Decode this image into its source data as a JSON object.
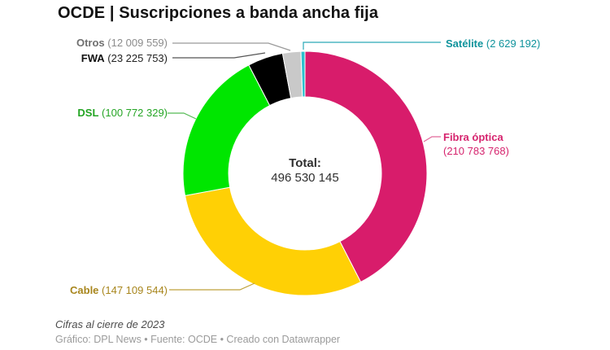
{
  "title": "OCDE | Suscripciones a banda ancha fija",
  "center": {
    "label": "Total:",
    "value": "496 530 145"
  },
  "footer": {
    "note": "Cifras al cierre de 2023",
    "credits": "Gráfico: DPL News • Fuente: OCDE • Creado con Datawrapper"
  },
  "chart_data": {
    "type": "pie",
    "donut": true,
    "title": "OCDE | Suscripciones a banda ancha fija",
    "total": 496530145,
    "total_display": "496 530 145",
    "start_angle_deg": 0,
    "direction": "clockwise",
    "segments": [
      {
        "name": "Fibra óptica",
        "value": 210783768,
        "value_display": "(210 783 768)",
        "color": "#d81c6b",
        "label_color": "#d6246e",
        "value_color": "#d6246e",
        "leader_color": "#e2699b"
      },
      {
        "name": "Cable",
        "value": 147109544,
        "value_display": "(147 109 544)",
        "color": "#ffd005",
        "label_color": "#a8861d",
        "value_color": "#a8861d",
        "leader_color": "#bfa13a"
      },
      {
        "name": "DSL",
        "value": 100772329,
        "value_display": "(100 772 329)",
        "color": "#00e600",
        "label_color": "#24a524",
        "value_color": "#24a524",
        "leader_color": "#55bb55"
      },
      {
        "name": "FWA",
        "value": 23225753,
        "value_display": "(23 225 753)",
        "color": "#000000",
        "label_color": "#111111",
        "value_color": "#222222",
        "leader_color": "#555555"
      },
      {
        "name": "Otros",
        "value": 12009559,
        "value_display": "(12 009 559)",
        "color": "#c9c9c9",
        "label_color": "#6f6f6f",
        "value_color": "#8c8c8c",
        "leader_color": "#999999"
      },
      {
        "name": "Satélite",
        "value": 2629192,
        "value_display": "(2 629 192)",
        "color": "#2bc0cd",
        "label_color": "#0f939c",
        "value_color": "#0f939c",
        "leader_color": "#2aa9b8"
      }
    ]
  }
}
